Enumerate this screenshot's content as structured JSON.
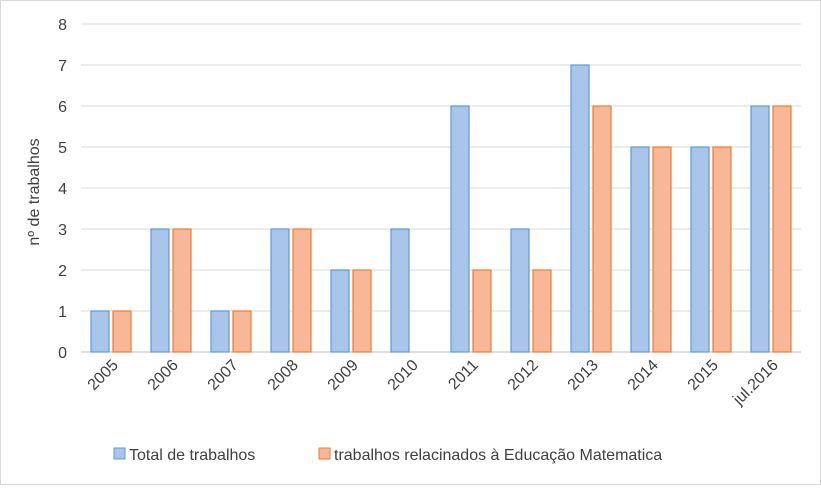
{
  "chart_data": {
    "type": "bar",
    "title": "",
    "xlabel": "",
    "ylabel": "nº de trabalhos",
    "ylim": [
      0,
      8
    ],
    "yticks": [
      0,
      1,
      2,
      3,
      4,
      5,
      6,
      7,
      8
    ],
    "grid": true,
    "legend_position": "bottom",
    "categories": [
      "2005",
      "2006",
      "2007",
      "2008",
      "2009",
      "2010",
      "2011",
      "2012",
      "2013",
      "2014",
      "2015",
      "jul.2016"
    ],
    "series": [
      {
        "name": "Total de trabalhos",
        "values": [
          1,
          3,
          1,
          3,
          2,
          3,
          6,
          3,
          7,
          5,
          5,
          6
        ],
        "fill": "#a9c6ea",
        "stroke": "#5b9bd5"
      },
      {
        "name": "trabalhos relacinados à Educação Matematica",
        "values": [
          1,
          3,
          1,
          3,
          2,
          0,
          2,
          2,
          6,
          5,
          5,
          6
        ],
        "fill": "#f8b898",
        "stroke": "#ed7d31"
      }
    ]
  }
}
